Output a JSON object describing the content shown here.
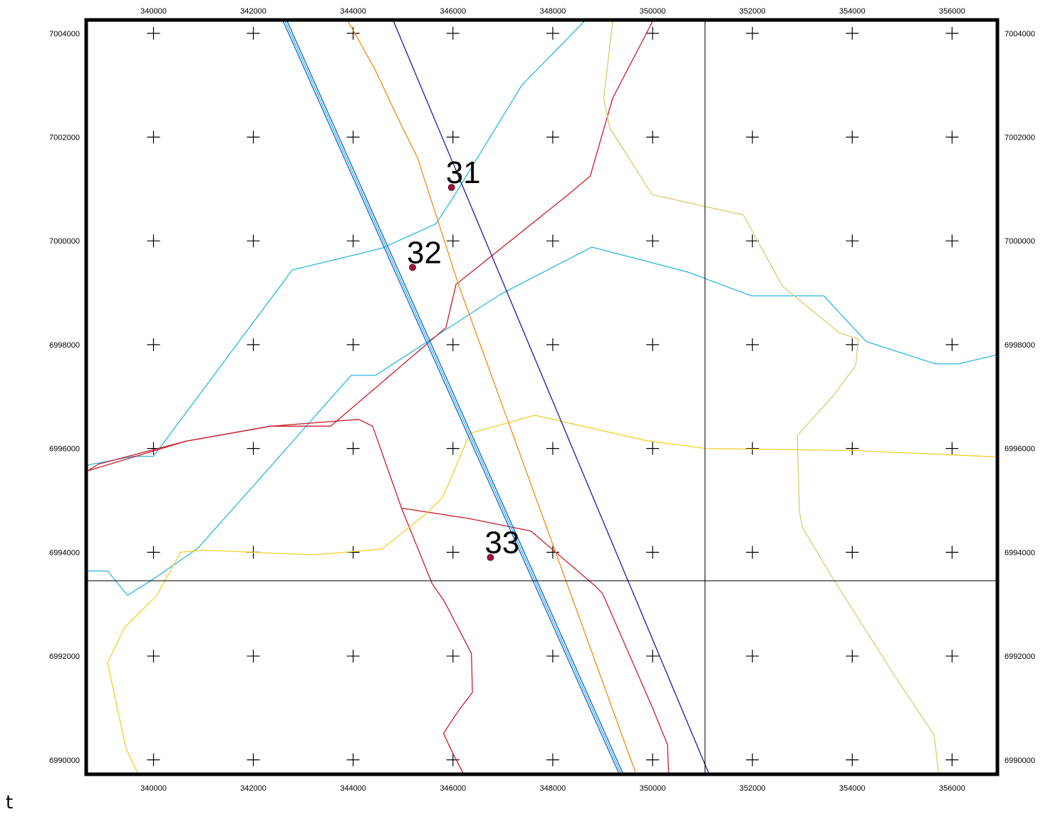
{
  "map": {
    "x_ticks": [
      {
        "label": "340000",
        "value": 340000
      },
      {
        "label": "342000",
        "value": 342000
      },
      {
        "label": "344000",
        "value": 344000
      },
      {
        "label": "346000",
        "value": 346000
      },
      {
        "label": "348000",
        "value": 348000
      },
      {
        "label": "350000",
        "value": 350000
      },
      {
        "label": "352000",
        "value": 352000
      },
      {
        "label": "354000",
        "value": 354000
      },
      {
        "label": "356000",
        "value": 356000
      }
    ],
    "y_ticks": [
      {
        "label": "7004000",
        "value": 7004000
      },
      {
        "label": "7002000",
        "value": 7002000
      },
      {
        "label": "7000000",
        "value": 7000000
      },
      {
        "label": "6998000",
        "value": 6998000
      },
      {
        "label": "6996000",
        "value": 6996000
      },
      {
        "label": "6994000",
        "value": 6994000
      },
      {
        "label": "6992000",
        "value": 6992000
      },
      {
        "label": "6990000",
        "value": 6990000
      }
    ],
    "extent": {
      "x_min": 338680,
      "x_max": 356880,
      "y_min": 6989750,
      "y_max": 7004230
    },
    "crosshair": {
      "x": 351050,
      "y": 6993450
    },
    "points": [
      {
        "label": "31",
        "x": 345970,
        "y": 7001030
      },
      {
        "label": "32",
        "x": 345190,
        "y": 6999490
      },
      {
        "label": "33",
        "x": 346750,
        "y": 6993900
      }
    ],
    "colors": {
      "frame": "#000000",
      "grid": "#000000",
      "crosshair": "#000000",
      "cyan": "#2bb8e0",
      "red": "#c8202c",
      "yellow": "#f2cf2b",
      "khaki": "#d9cb6a",
      "orange": "#f08a18",
      "navy": "#1a1aa0",
      "blue": "#1560c0",
      "point": "#a0103a"
    },
    "lines": [
      {
        "name": "cyan-north",
        "color": "cyan",
        "coords": [
          [
            338680,
            6995680
          ],
          [
            339600,
            6995850
          ],
          [
            340000,
            6995850
          ],
          [
            342780,
            6999440
          ],
          [
            344580,
            6999860
          ],
          [
            345660,
            7000330
          ],
          [
            346000,
            7000830
          ],
          [
            347380,
            7003000
          ],
          [
            348630,
            7004230
          ]
        ]
      },
      {
        "name": "cyan-south",
        "color": "cyan",
        "coords": [
          [
            338680,
            6993640
          ],
          [
            339080,
            6993640
          ],
          [
            339480,
            6993170
          ],
          [
            339990,
            6993480
          ],
          [
            340880,
            6994070
          ],
          [
            341920,
            6995190
          ],
          [
            343960,
            6997410
          ],
          [
            344450,
            6997410
          ],
          [
            346930,
            6998960
          ],
          [
            348780,
            6999880
          ],
          [
            350700,
            6999400
          ],
          [
            351980,
            6998940
          ],
          [
            353430,
            6998940
          ],
          [
            354280,
            6998060
          ],
          [
            355670,
            6997630
          ],
          [
            356120,
            6997630
          ],
          [
            356880,
            6997800
          ]
        ]
      },
      {
        "name": "red-north",
        "color": "red",
        "coords": [
          [
            338680,
            6995570
          ],
          [
            338900,
            6995700
          ],
          [
            340650,
            6996140
          ],
          [
            342350,
            6996430
          ],
          [
            343550,
            6996430
          ],
          [
            345860,
            6998330
          ],
          [
            346060,
            6999160
          ],
          [
            348320,
            7000900
          ],
          [
            348750,
            7001250
          ],
          [
            349200,
            7002750
          ],
          [
            350000,
            7004230
          ]
        ]
      },
      {
        "name": "red-south",
        "color": "red",
        "coords": [
          [
            338680,
            6995570
          ],
          [
            340650,
            6996140
          ],
          [
            342350,
            6996430
          ],
          [
            344110,
            6996560
          ],
          [
            344390,
            6996430
          ],
          [
            344970,
            6994850
          ],
          [
            346320,
            6994650
          ],
          [
            347560,
            6994410
          ],
          [
            348850,
            6993350
          ],
          [
            349000,
            6993200
          ],
          [
            350000,
            6991000
          ],
          [
            350300,
            6990290
          ],
          [
            350320,
            6989750
          ]
        ]
      },
      {
        "name": "red-branch",
        "color": "red",
        "coords": [
          [
            344970,
            6994850
          ],
          [
            345580,
            6993400
          ],
          [
            345830,
            6993050
          ],
          [
            346370,
            6992050
          ],
          [
            346390,
            6991300
          ],
          [
            346120,
            6990960
          ],
          [
            345810,
            6990510
          ],
          [
            345970,
            6990180
          ],
          [
            346200,
            6989750
          ]
        ]
      },
      {
        "name": "yellow-road",
        "color": "yellow",
        "coords": [
          [
            339080,
            6991870
          ],
          [
            339420,
            6992550
          ],
          [
            340060,
            6993160
          ],
          [
            340540,
            6994000
          ],
          [
            341000,
            6994040
          ],
          [
            343210,
            6993950
          ],
          [
            344580,
            6994060
          ],
          [
            345410,
            6994700
          ],
          [
            345790,
            6995050
          ],
          [
            346340,
            6996290
          ],
          [
            347640,
            6996640
          ],
          [
            349880,
            6996150
          ],
          [
            351070,
            6996000
          ],
          [
            354020,
            6995960
          ],
          [
            356880,
            6995840
          ]
        ]
      },
      {
        "name": "yellow-branch",
        "color": "yellow",
        "coords": [
          [
            339080,
            6991870
          ],
          [
            339450,
            6990220
          ],
          [
            339680,
            6989750
          ]
        ]
      },
      {
        "name": "khaki-river",
        "color": "khaki",
        "coords": [
          [
            349200,
            7004230
          ],
          [
            349020,
            7002750
          ],
          [
            349140,
            7002180
          ],
          [
            349990,
            7000890
          ],
          [
            351820,
            7000500
          ],
          [
            352600,
            6999130
          ],
          [
            353740,
            6998230
          ],
          [
            354120,
            6998110
          ],
          [
            354070,
            6997600
          ],
          [
            353630,
            6997030
          ],
          [
            352900,
            6996250
          ],
          [
            352940,
            6994800
          ],
          [
            353000,
            6994480
          ],
          [
            353610,
            6993500
          ],
          [
            354850,
            6991620
          ],
          [
            355640,
            6990480
          ],
          [
            355730,
            6989750
          ]
        ]
      },
      {
        "name": "orange-line",
        "color": "orange",
        "coords": [
          [
            343900,
            7004230
          ],
          [
            344440,
            7003300
          ],
          [
            344890,
            7002380
          ],
          [
            345290,
            7001600
          ],
          [
            346110,
            6999160
          ],
          [
            349660,
            6989750
          ]
        ]
      },
      {
        "name": "navy-line",
        "color": "navy",
        "coords": [
          [
            344810,
            7004230
          ],
          [
            351120,
            6989750
          ]
        ]
      },
      {
        "name": "blue-line-a",
        "color": "blue",
        "coords": [
          [
            342600,
            7004230
          ],
          [
            349320,
            6989750
          ]
        ]
      },
      {
        "name": "blue-line-b",
        "color": "blue",
        "coords": [
          [
            342680,
            7004230
          ],
          [
            349400,
            6989750
          ]
        ]
      },
      {
        "name": "cyan-line-c",
        "color": "cyan",
        "coords": [
          [
            342640,
            7004230
          ],
          [
            349360,
            6989750
          ]
        ]
      }
    ]
  },
  "page_letter": "t"
}
